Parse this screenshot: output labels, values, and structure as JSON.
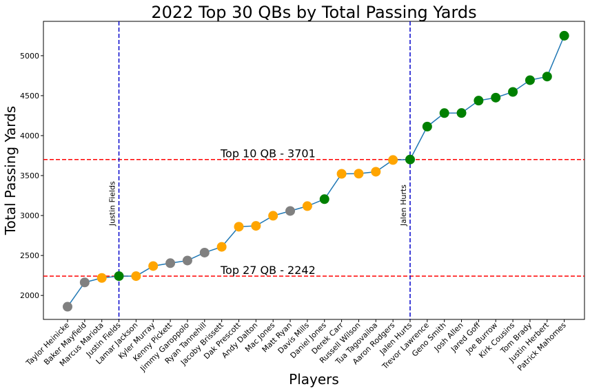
{
  "chart_data": {
    "type": "line",
    "title": "2022 Top 30 QBs by Total Passing Yards",
    "xlabel": "Players",
    "ylabel": "Total Passing Yards",
    "ylim": [
      1700,
      5430
    ],
    "yticks": [
      2000,
      2500,
      3000,
      3500,
      4000,
      4500,
      5000
    ],
    "grid": false,
    "line_color": "#1f77b4",
    "marker_colors": {
      "gray": "#808080",
      "orange": "#ffa500",
      "green": "#008000"
    },
    "players": [
      {
        "name": "Taylor Heinicke",
        "yards": 1859,
        "color": "gray"
      },
      {
        "name": "Baker Mayfield",
        "yards": 2163,
        "color": "gray"
      },
      {
        "name": "Marcus Mariota",
        "yards": 2219,
        "color": "orange"
      },
      {
        "name": "Justin Fields",
        "yards": 2242,
        "color": "green"
      },
      {
        "name": "Lamar Jackson",
        "yards": 2242,
        "color": "orange"
      },
      {
        "name": "Kyler Murray",
        "yards": 2368,
        "color": "orange"
      },
      {
        "name": "Kenny Pickett",
        "yards": 2404,
        "color": "gray"
      },
      {
        "name": "Jimmy Garoppolo",
        "yards": 2437,
        "color": "gray"
      },
      {
        "name": "Ryan Tannehill",
        "yards": 2536,
        "color": "gray"
      },
      {
        "name": "Jacoby Brissett",
        "yards": 2608,
        "color": "orange"
      },
      {
        "name": "Dak Prescott",
        "yards": 2860,
        "color": "orange"
      },
      {
        "name": "Andy Dalton",
        "yards": 2871,
        "color": "orange"
      },
      {
        "name": "Mac Jones",
        "yards": 2997,
        "color": "orange"
      },
      {
        "name": "Matt Ryan",
        "yards": 3057,
        "color": "gray"
      },
      {
        "name": "Davis Mills",
        "yards": 3118,
        "color": "orange"
      },
      {
        "name": "Daniel Jones",
        "yards": 3205,
        "color": "green"
      },
      {
        "name": "Derek Carr",
        "yards": 3522,
        "color": "orange"
      },
      {
        "name": "Russell Wilson",
        "yards": 3524,
        "color": "orange"
      },
      {
        "name": "Tua Tagovailoa",
        "yards": 3548,
        "color": "orange"
      },
      {
        "name": "Aaron Rodgers",
        "yards": 3695,
        "color": "orange"
      },
      {
        "name": "Jalen Hurts",
        "yards": 3701,
        "color": "green"
      },
      {
        "name": "Trevor Lawrence",
        "yards": 4113,
        "color": "green"
      },
      {
        "name": "Geno Smith",
        "yards": 4282,
        "color": "green"
      },
      {
        "name": "Josh Allen",
        "yards": 4283,
        "color": "green"
      },
      {
        "name": "Jared Goff",
        "yards": 4438,
        "color": "green"
      },
      {
        "name": "Joe Burrow",
        "yards": 4475,
        "color": "green"
      },
      {
        "name": "Kirk Cousins",
        "yards": 4547,
        "color": "green"
      },
      {
        "name": "Tom Brady",
        "yards": 4694,
        "color": "green"
      },
      {
        "name": "Justin Herbert",
        "yards": 4739,
        "color": "green"
      },
      {
        "name": "Patrick Mahomes",
        "yards": 5250,
        "color": "green"
      }
    ],
    "hlines": [
      {
        "value": 3701,
        "label": "Top 10 QB - 3701",
        "color": "#ff0000"
      },
      {
        "value": 2242,
        "label": "Top 27 QB - 2242",
        "color": "#ff0000"
      }
    ],
    "vlines": [
      {
        "player": "Justin Fields",
        "label": "Justin Fields",
        "color": "#0000cc"
      },
      {
        "player": "Jalen Hurts",
        "label": "Jalen Hurts",
        "color": "#0000cc"
      }
    ]
  }
}
